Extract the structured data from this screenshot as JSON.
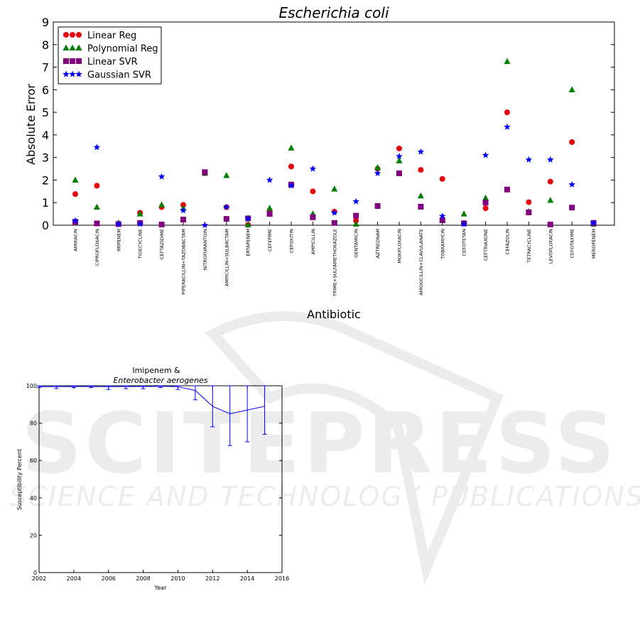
{
  "watermark": {
    "brand": "SCITEPRESS",
    "tagline": "SCIENCE AND TECHNOLOGY PUBLICATIONS"
  },
  "chart_data": [
    {
      "type": "scatter",
      "title": "Escherichia coli",
      "xlabel": "Antibiotic",
      "ylabel": "Absolute Error",
      "ylim": [
        0,
        9
      ],
      "yticks": [
        0,
        1,
        2,
        3,
        4,
        5,
        6,
        7,
        8,
        9
      ],
      "legend_position": "top-left",
      "categories": [
        "AMIKACIN",
        "CIPROFLOXACIN",
        "IMIPENEM",
        "TIGECYCLINE",
        "CEFTAZIDIME",
        "PIPERACILLIN+TAZOBACTAM",
        "NITROFURANTOIN",
        "AMPICILLIN+SULBACTAM",
        "ERTAPENEM",
        "CEFEPIME",
        "CEFOXITIN",
        "AMPICILLIN",
        "TRIME+SULFAMETHOXAZOLE",
        "GENTAMICIN",
        "AZTREONAM",
        "MOXIFLOXACIN",
        "AMOXICILLIN+CLAVULANATE",
        "TOBRAMYCIN",
        "CEFOTETAN",
        "CEFTRIAXONE",
        "CEFAZOLIN",
        "TETRACYCLINE",
        "LEVOFLOXACIN",
        "CEFOTAXIME",
        "MEROPENEM"
      ],
      "series": [
        {
          "name": "Linear Reg",
          "marker": "circle",
          "color": "#e8000b",
          "values": [
            1.38,
            1.75,
            0.05,
            0.55,
            0.8,
            0.9,
            2.3,
            0.8,
            0.02,
            0.65,
            2.6,
            1.5,
            0.6,
            0.2,
            2.5,
            3.4,
            2.45,
            2.05,
            0.1,
            0.75,
            5.0,
            1.02,
            1.93,
            3.68,
            0.05
          ]
        },
        {
          "name": "Polynomial Reg",
          "marker": "triangle",
          "color": "#008000",
          "values": [
            2.0,
            0.8,
            0.1,
            0.5,
            0.9,
            0.75,
            2.3,
            2.2,
            0.02,
            0.75,
            3.42,
            0.5,
            1.6,
            0.05,
            2.55,
            2.85,
            1.3,
            0.25,
            0.5,
            1.2,
            7.25,
            0.6,
            1.1,
            6.0,
            0.05
          ]
        },
        {
          "name": "Linear SVR",
          "marker": "square",
          "color": "#800080",
          "values": [
            0.15,
            0.08,
            0.05,
            0.1,
            0.03,
            0.25,
            2.35,
            0.28,
            0.3,
            0.5,
            1.8,
            0.35,
            0.1,
            0.42,
            0.85,
            2.3,
            0.82,
            0.22,
            0.08,
            1.0,
            1.58,
            0.57,
            0.03,
            0.78,
            0.1
          ]
        },
        {
          "name": "Gaussian SVR",
          "marker": "star",
          "color": "#0000ff",
          "values": [
            0.2,
            3.45,
            0.05,
            0.05,
            2.15,
            0.65,
            0.0,
            0.8,
            0.3,
            2.0,
            1.75,
            2.5,
            0.55,
            1.05,
            2.3,
            3.05,
            3.25,
            0.4,
            0.05,
            3.1,
            4.35,
            2.9,
            2.9,
            1.8,
            0.1
          ]
        }
      ]
    },
    {
      "type": "line",
      "title_line1": "Imipenem &",
      "title_line2": "Enterobacter aerogenes",
      "xlabel": "Year",
      "ylabel": "Susceptibility Percent",
      "xlim": [
        2002,
        2016
      ],
      "ylim": [
        0,
        100
      ],
      "xticks": [
        2002,
        2004,
        2006,
        2008,
        2010,
        2012,
        2014,
        2016
      ],
      "yticks": [
        0,
        20,
        40,
        60,
        80,
        100
      ],
      "color": "#0000ff",
      "x": [
        2002,
        2003,
        2004,
        2005,
        2006,
        2007,
        2008,
        2009,
        2010,
        2011,
        2012,
        2013,
        2014,
        2015
      ],
      "y": [
        99.5,
        99.5,
        99.6,
        99.6,
        99.5,
        99.6,
        99.6,
        99.7,
        99.5,
        97.5,
        89,
        85,
        87,
        89
      ],
      "err_low": [
        0.5,
        1,
        0.6,
        0.6,
        1.5,
        1.2,
        1.2,
        0.7,
        1.5,
        5,
        11,
        17,
        17,
        15
      ],
      "err_high": [
        0.5,
        0.5,
        0.4,
        0.4,
        0.5,
        0.4,
        0.4,
        0.3,
        0.5,
        2.5,
        11,
        15,
        13,
        11
      ]
    }
  ]
}
